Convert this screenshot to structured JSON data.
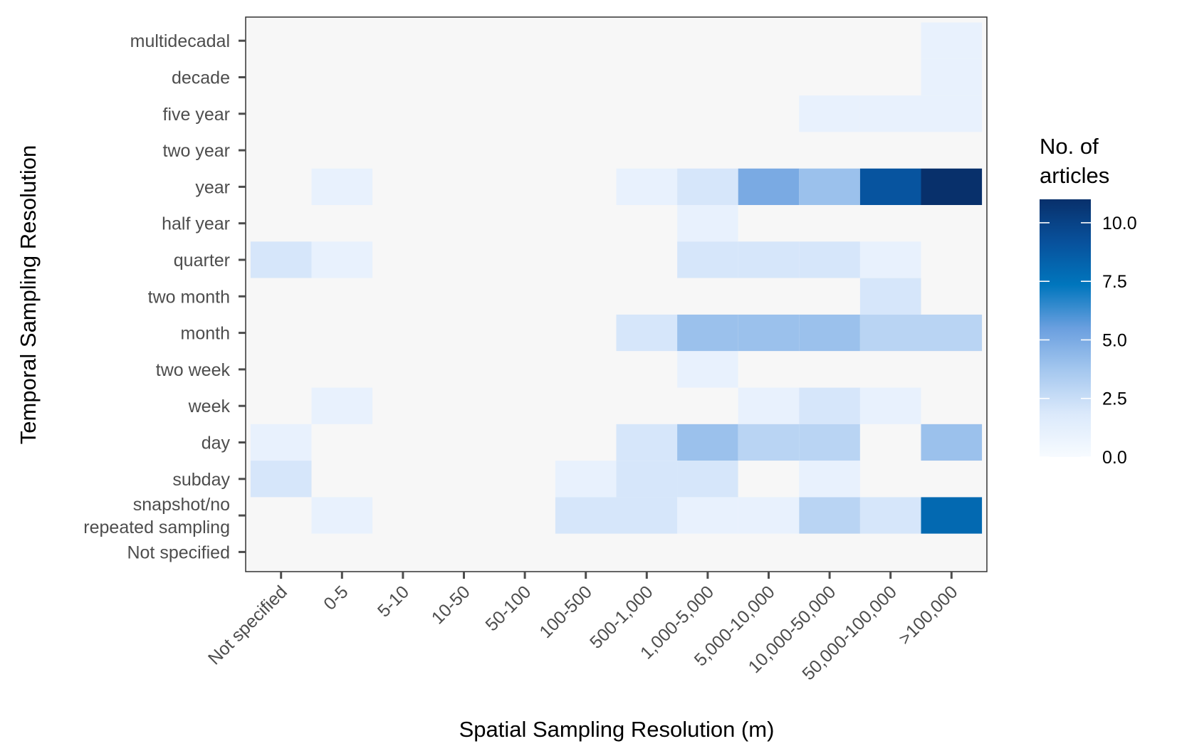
{
  "chart_data": {
    "type": "heatmap",
    "title": "",
    "xlabel": "Spatial Sampling Resolution (m)",
    "ylabel": "Temporal Sampling Resolution",
    "x_categories": [
      "Not specified",
      "0-5",
      "5-10",
      "10-50",
      "50-100",
      "100-500",
      "500-1,000",
      "1,000-5,000",
      "5,000-10,000",
      "10,000-50,000",
      "50,000-100,000",
      ">100,000"
    ],
    "y_categories": [
      "multidecadal",
      "decade",
      "five year",
      "two year",
      "year",
      "half year",
      "quarter",
      "two month",
      "month",
      "two week",
      "week",
      "day",
      "subday",
      "snapshot/no\nrepeated sampling",
      "Not specified"
    ],
    "values": [
      [
        0,
        0,
        0,
        0,
        0,
        0,
        0,
        0,
        0,
        0,
        0,
        1
      ],
      [
        0,
        0,
        0,
        0,
        0,
        0,
        0,
        0,
        0,
        0,
        0,
        1
      ],
      [
        0,
        0,
        0,
        0,
        0,
        0,
        0,
        0,
        0,
        1,
        1,
        1
      ],
      [
        0,
        0,
        0,
        0,
        0,
        0,
        0,
        0,
        0,
        0,
        0,
        0
      ],
      [
        0,
        1,
        0,
        0,
        0,
        0,
        1,
        2,
        5,
        4,
        9,
        11
      ],
      [
        0,
        0,
        0,
        0,
        0,
        0,
        0,
        1,
        0,
        0,
        0,
        0
      ],
      [
        2,
        1,
        0,
        0,
        0,
        0,
        0,
        2,
        2,
        2,
        1,
        0
      ],
      [
        0,
        0,
        0,
        0,
        0,
        0,
        0,
        0,
        0,
        0,
        2,
        0
      ],
      [
        0,
        0,
        0,
        0,
        0,
        0,
        2,
        4,
        4,
        4,
        3,
        3
      ],
      [
        0,
        0,
        0,
        0,
        0,
        0,
        0,
        1,
        0,
        0,
        0,
        0
      ],
      [
        0,
        1,
        0,
        0,
        0,
        0,
        0,
        0,
        1,
        2,
        1,
        0
      ],
      [
        1,
        0,
        0,
        0,
        0,
        0,
        2,
        4,
        3,
        3,
        0,
        4
      ],
      [
        2,
        0,
        0,
        0,
        0,
        1,
        2,
        2,
        0,
        1,
        0,
        0
      ],
      [
        0,
        1,
        0,
        0,
        0,
        2,
        2,
        1,
        1,
        3,
        2,
        8
      ],
      [
        0,
        0,
        0,
        0,
        0,
        0,
        0,
        0,
        0,
        0,
        0,
        0
      ]
    ],
    "legend": {
      "title": "No. of\narticles",
      "breaks": [
        "0.0",
        "2.5",
        "5.0",
        "7.5",
        "10.0"
      ],
      "break_values": [
        0,
        2.5,
        5,
        7.5,
        10
      ],
      "range": [
        0,
        11
      ],
      "placement": "right"
    },
    "colors": {
      "panel_background": "#f7f7f7",
      "zero_cell": "#f7f7f7",
      "gradient": [
        "#f7fbff",
        "#dbe9fb",
        "#a6c8ef",
        "#6a9fdf",
        "#0076bd",
        "#08519c",
        "#08306b"
      ],
      "tick": "#4d4d4d",
      "text": "#4d4d4d"
    },
    "grid": false
  }
}
